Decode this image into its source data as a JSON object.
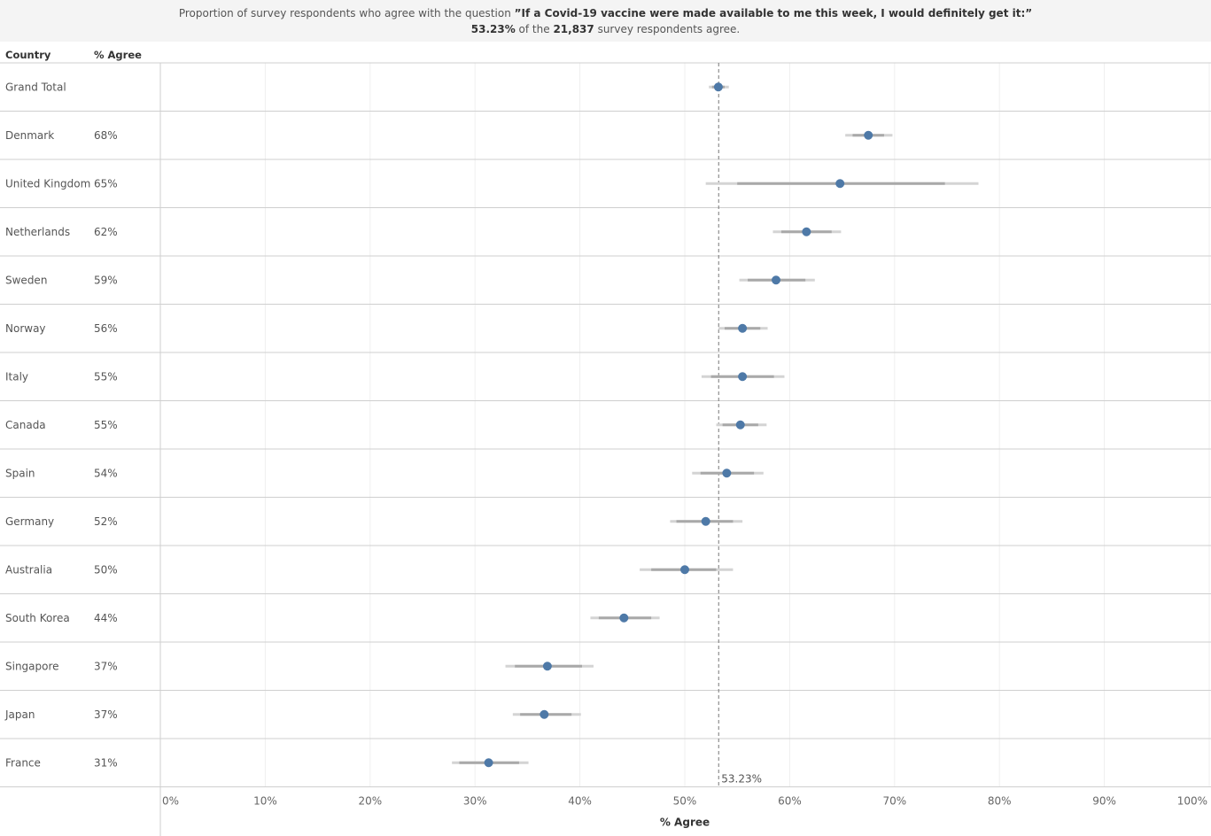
{
  "header": {
    "question_prefix": "Proportion of survey respondents who agree with the question ",
    "question_text": "”If a Covid-19 vaccine were made available to me this week, I would definitely get it:”",
    "summary_pct": "53.23%",
    "summary_mid": " of the ",
    "summary_count": "21,837",
    "summary_suffix": " survey respondents agree."
  },
  "table": {
    "col_country": "Country",
    "col_agree": "% Agree"
  },
  "chart_data": {
    "type": "scatter",
    "subtype": "dot plot with confidence interval bars",
    "xlabel": "% Agree",
    "xlim": [
      0,
      100
    ],
    "x_ticks": [
      "0%",
      "10%",
      "20%",
      "30%",
      "40%",
      "50%",
      "60%",
      "70%",
      "80%",
      "90%",
      "100%"
    ],
    "reference_line": {
      "value": 53.23,
      "label": "53.23%"
    },
    "grid": true,
    "rows": [
      {
        "country": "Grand Total",
        "label": "",
        "value": 53.2,
        "ci_inner": [
          52.6,
          53.8
        ],
        "ci_outer": [
          52.3,
          54.2
        ]
      },
      {
        "country": "Denmark",
        "label": "68%",
        "value": 67.5,
        "ci_inner": [
          66.0,
          69.0
        ],
        "ci_outer": [
          65.3,
          69.8
        ]
      },
      {
        "country": "United Kingdom",
        "label": "65%",
        "value": 64.8,
        "ci_inner": [
          55.0,
          74.8
        ],
        "ci_outer": [
          52.0,
          78.0
        ]
      },
      {
        "country": "Netherlands",
        "label": "62%",
        "value": 61.6,
        "ci_inner": [
          59.2,
          64.0
        ],
        "ci_outer": [
          58.4,
          64.9
        ]
      },
      {
        "country": "Sweden",
        "label": "59%",
        "value": 58.7,
        "ci_inner": [
          56.0,
          61.5
        ],
        "ci_outer": [
          55.2,
          62.4
        ]
      },
      {
        "country": "Norway",
        "label": "56%",
        "value": 55.5,
        "ci_inner": [
          53.8,
          57.2
        ],
        "ci_outer": [
          53.2,
          57.9
        ]
      },
      {
        "country": "Italy",
        "label": "55%",
        "value": 55.5,
        "ci_inner": [
          52.5,
          58.5
        ],
        "ci_outer": [
          51.6,
          59.5
        ]
      },
      {
        "country": "Canada",
        "label": "55%",
        "value": 55.3,
        "ci_inner": [
          53.6,
          57.0
        ],
        "ci_outer": [
          53.0,
          57.8
        ]
      },
      {
        "country": "Spain",
        "label": "54%",
        "value": 54.0,
        "ci_inner": [
          51.5,
          56.6
        ],
        "ci_outer": [
          50.7,
          57.5
        ]
      },
      {
        "country": "Germany",
        "label": "52%",
        "value": 52.0,
        "ci_inner": [
          49.2,
          54.6
        ],
        "ci_outer": [
          48.6,
          55.5
        ]
      },
      {
        "country": "Australia",
        "label": "50%",
        "value": 50.0,
        "ci_inner": [
          46.8,
          53.0
        ],
        "ci_outer": [
          45.7,
          54.6
        ]
      },
      {
        "country": "South Korea",
        "label": "44%",
        "value": 44.2,
        "ci_inner": [
          41.8,
          46.8
        ],
        "ci_outer": [
          41.0,
          47.6
        ]
      },
      {
        "country": "Singapore",
        "label": "37%",
        "value": 36.9,
        "ci_inner": [
          33.8,
          40.2
        ],
        "ci_outer": [
          32.9,
          41.3
        ]
      },
      {
        "country": "Japan",
        "label": "37%",
        "value": 36.6,
        "ci_inner": [
          34.3,
          39.2
        ],
        "ci_outer": [
          33.6,
          40.1
        ]
      },
      {
        "country": "France",
        "label": "31%",
        "value": 31.3,
        "ci_inner": [
          28.5,
          34.2
        ],
        "ci_outer": [
          27.8,
          35.1
        ]
      }
    ],
    "colors": {
      "dot": "#4e79a7",
      "ci_inner": "#a9a9a9",
      "ci_outer": "#d4d4d4",
      "reference_line": "#777777",
      "grid": "#efefef",
      "row_border": "#cfcfcf"
    }
  }
}
